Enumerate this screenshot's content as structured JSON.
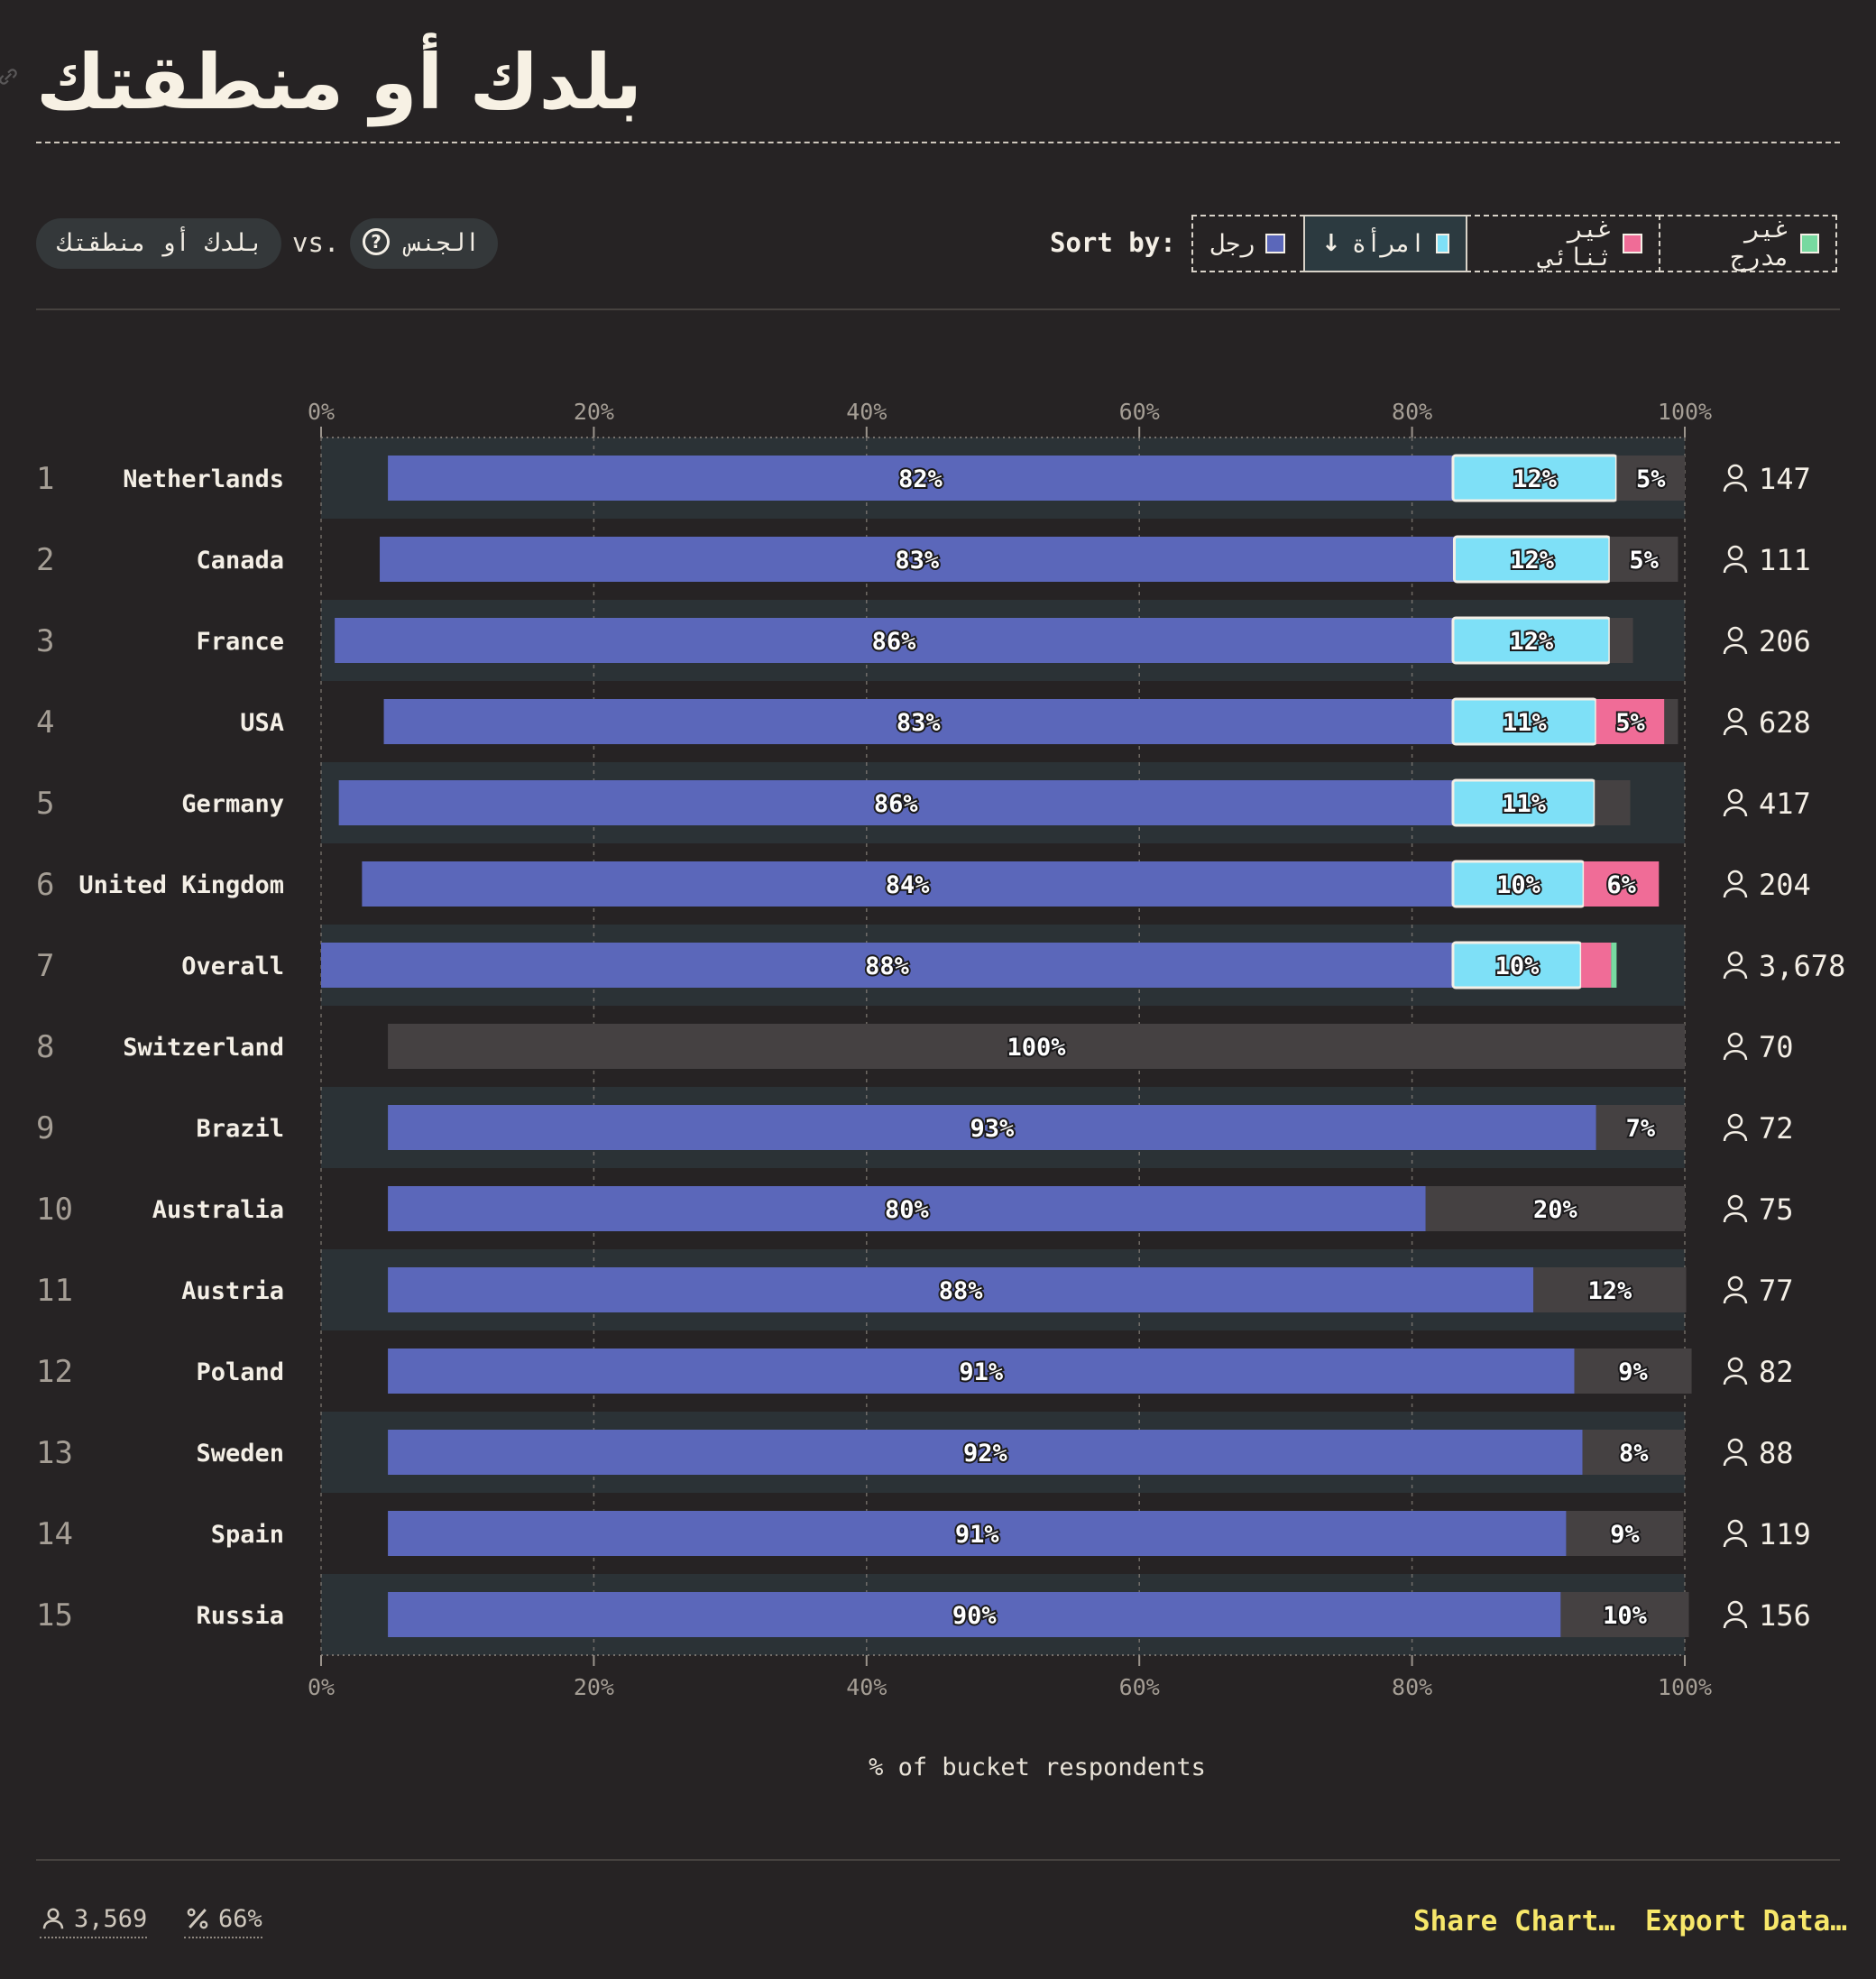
{
  "header": {
    "title": "بلدك أو منطقتك"
  },
  "controls": {
    "bucket_chip": "بلدك أو منطقتك",
    "vs_label": "vs.",
    "gender_chip": "الجنس",
    "sort_label": "Sort by:",
    "sort_buttons": [
      {
        "label": "رجل",
        "color": "#5b67ba",
        "active": false
      },
      {
        "label": "امرأة",
        "color": "#7ee0f7",
        "active": true,
        "arrow": "↓"
      },
      {
        "label": "غير ثنائي",
        "color": "#f06c97",
        "active": false
      },
      {
        "label": "غير مدرج",
        "color": "#77d9a0",
        "active": false
      }
    ]
  },
  "chart_data": {
    "type": "bar",
    "stacked": true,
    "orientation": "horizontal",
    "xlabel": "% of bucket respondents",
    "xlim": [
      0,
      100
    ],
    "xticks": [
      "0%",
      "20%",
      "40%",
      "60%",
      "80%",
      "100%"
    ],
    "colors": {
      "man": "#5b67ba",
      "woman": "#7ee0f7",
      "nonbinary": "#f06c97",
      "not_listed": "#77d9a0",
      "other": "#454142"
    },
    "rows": [
      {
        "rank": "1",
        "name": "Netherlands",
        "count": "147",
        "segments": [
          {
            "key": "man",
            "start": 4.9,
            "value": 78.1,
            "label": "82%"
          },
          {
            "key": "woman",
            "start": 83,
            "value": 12,
            "label": "12%"
          },
          {
            "key": "other",
            "start": 95,
            "value": 5,
            "label": "5%"
          }
        ]
      },
      {
        "rank": "2",
        "name": "Canada",
        "count": "111",
        "segments": [
          {
            "key": "man",
            "start": 4.3,
            "value": 78.8,
            "label": "83%"
          },
          {
            "key": "woman",
            "start": 83.1,
            "value": 11.4,
            "label": "12%"
          },
          {
            "key": "other",
            "start": 94.5,
            "value": 5,
            "label": "5%"
          }
        ]
      },
      {
        "rank": "3",
        "name": "France",
        "count": "206",
        "segments": [
          {
            "key": "man",
            "start": 1,
            "value": 82,
            "label": "86%"
          },
          {
            "key": "woman",
            "start": 83,
            "value": 11.5,
            "label": "12%"
          },
          {
            "key": "other",
            "start": 94.5,
            "value": 1.7,
            "label": ""
          }
        ]
      },
      {
        "rank": "4",
        "name": "USA",
        "count": "628",
        "segments": [
          {
            "key": "man",
            "start": 4.6,
            "value": 78.4,
            "label": "83%"
          },
          {
            "key": "woman",
            "start": 83,
            "value": 10.5,
            "label": "11%"
          },
          {
            "key": "nonbinary",
            "start": 93.5,
            "value": 5,
            "label": "5%"
          },
          {
            "key": "other",
            "start": 98.5,
            "value": 1,
            "label": ""
          }
        ]
      },
      {
        "rank": "5",
        "name": "Germany",
        "count": "417",
        "segments": [
          {
            "key": "man",
            "start": 1.3,
            "value": 81.7,
            "label": "86%"
          },
          {
            "key": "woman",
            "start": 83,
            "value": 10.4,
            "label": "11%"
          },
          {
            "key": "other",
            "start": 93.4,
            "value": 2.6,
            "label": ""
          }
        ]
      },
      {
        "rank": "6",
        "name": "United Kingdom",
        "count": "204",
        "segments": [
          {
            "key": "man",
            "start": 3,
            "value": 80,
            "label": "84%"
          },
          {
            "key": "woman",
            "start": 83,
            "value": 9.6,
            "label": "10%"
          },
          {
            "key": "nonbinary",
            "start": 92.6,
            "value": 5.5,
            "label": "6%"
          }
        ]
      },
      {
        "rank": "7",
        "name": "Overall",
        "count": "3,678",
        "segments": [
          {
            "key": "man",
            "start": 0,
            "value": 83,
            "label": "88%"
          },
          {
            "key": "woman",
            "start": 83,
            "value": 9.4,
            "label": "10%"
          },
          {
            "key": "nonbinary",
            "start": 92.4,
            "value": 2.2,
            "label": ""
          },
          {
            "key": "not_listed",
            "start": 94.6,
            "value": 0.4,
            "label": ""
          }
        ]
      },
      {
        "rank": "8",
        "name": "Switzerland",
        "count": "70",
        "segments": [
          {
            "key": "other",
            "start": 4.9,
            "value": 95.1,
            "label": "100%"
          }
        ]
      },
      {
        "rank": "9",
        "name": "Brazil",
        "count": "72",
        "segments": [
          {
            "key": "man",
            "start": 4.9,
            "value": 88.6,
            "label": "93%"
          },
          {
            "key": "other",
            "start": 93.5,
            "value": 6.5,
            "label": "7%"
          }
        ]
      },
      {
        "rank": "10",
        "name": "Australia",
        "count": "75",
        "segments": [
          {
            "key": "man",
            "start": 4.9,
            "value": 76.1,
            "label": "80%"
          },
          {
            "key": "other",
            "start": 81,
            "value": 19,
            "label": "20%"
          }
        ]
      },
      {
        "rank": "11",
        "name": "Austria",
        "count": "77",
        "segments": [
          {
            "key": "man",
            "start": 4.9,
            "value": 84,
            "label": "88%"
          },
          {
            "key": "other",
            "start": 88.9,
            "value": 11.2,
            "label": "12%"
          }
        ]
      },
      {
        "rank": "12",
        "name": "Poland",
        "count": "82",
        "segments": [
          {
            "key": "man",
            "start": 4.9,
            "value": 87,
            "label": "91%"
          },
          {
            "key": "other",
            "start": 91.9,
            "value": 8.6,
            "label": "9%"
          }
        ]
      },
      {
        "rank": "13",
        "name": "Sweden",
        "count": "88",
        "segments": [
          {
            "key": "man",
            "start": 4.9,
            "value": 87.6,
            "label": "92%"
          },
          {
            "key": "other",
            "start": 92.5,
            "value": 7.5,
            "label": "8%"
          }
        ]
      },
      {
        "rank": "14",
        "name": "Spain",
        "count": "119",
        "segments": [
          {
            "key": "man",
            "start": 4.9,
            "value": 86.4,
            "label": "91%"
          },
          {
            "key": "other",
            "start": 91.3,
            "value": 8.6,
            "label": "9%"
          }
        ]
      },
      {
        "rank": "15",
        "name": "Russia",
        "count": "156",
        "segments": [
          {
            "key": "man",
            "start": 4.9,
            "value": 86,
            "label": "90%"
          },
          {
            "key": "other",
            "start": 90.9,
            "value": 9.4,
            "label": "10%"
          }
        ]
      }
    ]
  },
  "footer": {
    "respondents": "3,569",
    "percent": "66%",
    "share_label": "Share Chart…",
    "export_label": "Export Data…"
  }
}
